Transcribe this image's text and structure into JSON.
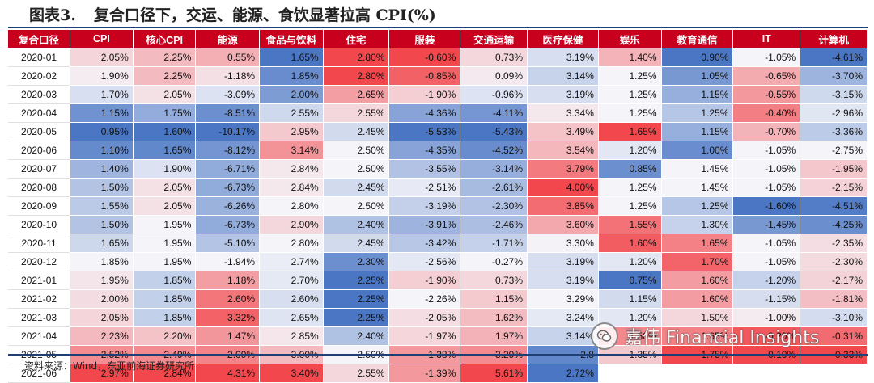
{
  "title": {
    "label": "图表3.",
    "text": "复合口径下，交运、能源、食饮显著拉高 CPI(%)"
  },
  "table": {
    "headers": [
      "复合口径",
      "CPI",
      "核心CPI",
      "能源",
      "食品与饮料",
      "住宅",
      "服装",
      "交通运输",
      "医疗保健",
      "娱乐",
      "教育通信",
      "IT",
      "计算机"
    ],
    "rows": [
      [
        "2020-01",
        "2.05%",
        "2.25%",
        "0.55%",
        "1.65%",
        "2.80%",
        "-0.60%",
        "0.73%",
        "3.19%",
        "1.40%",
        "0.90%",
        "-1.05%",
        "-4.61%"
      ],
      [
        "2020-02",
        "1.90%",
        "2.25%",
        "-1.18%",
        "1.85%",
        "2.80%",
        "-0.85%",
        "0.09%",
        "3.14%",
        "1.25%",
        "1.05%",
        "-0.65%",
        "-3.70%"
      ],
      [
        "2020-03",
        "1.70%",
        "2.05%",
        "-3.09%",
        "2.00%",
        "2.65%",
        "-1.90%",
        "-0.96%",
        "3.19%",
        "1.25%",
        "1.15%",
        "-0.55%",
        "-3.15%"
      ],
      [
        "2020-04",
        "1.15%",
        "1.75%",
        "-8.51%",
        "2.55%",
        "2.55%",
        "-4.36%",
        "-4.11%",
        "3.34%",
        "1.25%",
        "1.25%",
        "-0.40%",
        "-2.96%"
      ],
      [
        "2020-05",
        "0.95%",
        "1.60%",
        "-10.17%",
        "2.95%",
        "2.45%",
        "-5.53%",
        "-5.43%",
        "3.49%",
        "1.65%",
        "1.15%",
        "-0.70%",
        "-3.36%"
      ],
      [
        "2020-06",
        "1.10%",
        "1.65%",
        "-8.12%",
        "3.14%",
        "2.50%",
        "-4.35%",
        "-4.52%",
        "3.54%",
        "1.20%",
        "1.00%",
        "-1.05%",
        "-2.75%"
      ],
      [
        "2020-07",
        "1.40%",
        "1.90%",
        "-6.71%",
        "2.84%",
        "2.50%",
        "-3.55%",
        "-3.14%",
        "3.79%",
        "0.85%",
        "1.45%",
        "-1.05%",
        "-1.95%"
      ],
      [
        "2020-08",
        "1.50%",
        "2.05%",
        "-6.73%",
        "2.84%",
        "2.45%",
        "-2.51%",
        "-2.61%",
        "4.00%",
        "1.25%",
        "1.45%",
        "-1.05%",
        "-2.15%"
      ],
      [
        "2020-09",
        "1.55%",
        "2.05%",
        "-6.26%",
        "2.80%",
        "2.50%",
        "-3.19%",
        "-2.30%",
        "3.85%",
        "1.25%",
        "1.25%",
        "-1.60%",
        "-4.51%"
      ],
      [
        "2020-10",
        "1.50%",
        "1.95%",
        "-6.73%",
        "2.90%",
        "2.40%",
        "-3.91%",
        "-2.46%",
        "3.60%",
        "1.55%",
        "1.30%",
        "-1.45%",
        "-4.25%"
      ],
      [
        "2020-11",
        "1.65%",
        "1.95%",
        "-5.10%",
        "2.80%",
        "2.45%",
        "-3.42%",
        "-1.71%",
        "3.30%",
        "1.60%",
        "1.65%",
        "-1.05%",
        "-2.35%"
      ],
      [
        "2020-12",
        "1.85%",
        "1.95%",
        "-1.94%",
        "2.74%",
        "2.30%",
        "-2.56%",
        "-0.27%",
        "3.19%",
        "1.20%",
        "1.70%",
        "-1.05%",
        "-2.30%"
      ],
      [
        "2021-01",
        "1.95%",
        "1.85%",
        "1.18%",
        "2.70%",
        "2.25%",
        "-1.90%",
        "0.73%",
        "3.19%",
        "0.75%",
        "1.60%",
        "-1.20%",
        "-2.17%"
      ],
      [
        "2021-02",
        "2.00%",
        "1.85%",
        "2.60%",
        "2.60%",
        "2.25%",
        "-2.26%",
        "1.15%",
        "3.29%",
        "1.15%",
        "1.60%",
        "-1.15%",
        "-1.81%"
      ],
      [
        "2021-03",
        "2.05%",
        "1.85%",
        "3.32%",
        "2.65%",
        "2.25%",
        "-2.05%",
        "1.62%",
        "3.24%",
        "1.20%",
        "1.50%",
        "-1.00%",
        "-3.10%"
      ],
      [
        "2021-04",
        "2.23%",
        "2.20%",
        "1.47%",
        "2.85%",
        "2.40%",
        "-1.97%",
        "1.97%",
        "3.14%",
        "1.50%",
        "1.65%",
        "-0.20%",
        "-0.31%"
      ],
      [
        "2021-05",
        "2.52%",
        "2.49%",
        "2.09%",
        "3.00%",
        "2.50%",
        "-1.38%",
        "3.29%",
        "2.8",
        "1.35%",
        "1.75%",
        "-0.10%",
        "0.33%"
      ],
      [
        "2021-06",
        "2.97%",
        "2.84%",
        "4.31%",
        "3.40%",
        "2.55%",
        "-1.39%",
        "5.61%",
        "2.72%",
        "",
        "",
        "",
        ""
      ]
    ]
  },
  "colors": {
    "header_bg": "#c8001e",
    "low": "#4a76c4",
    "mid": "#f4f4f9",
    "high": "#f2474c",
    "rule": "#1f3e73"
  },
  "source": "资料来源：Wind，东亚前海证券研究所",
  "watermark": {
    "icon": "wechat-icon",
    "text": "嘉伟 Financial Insights"
  }
}
